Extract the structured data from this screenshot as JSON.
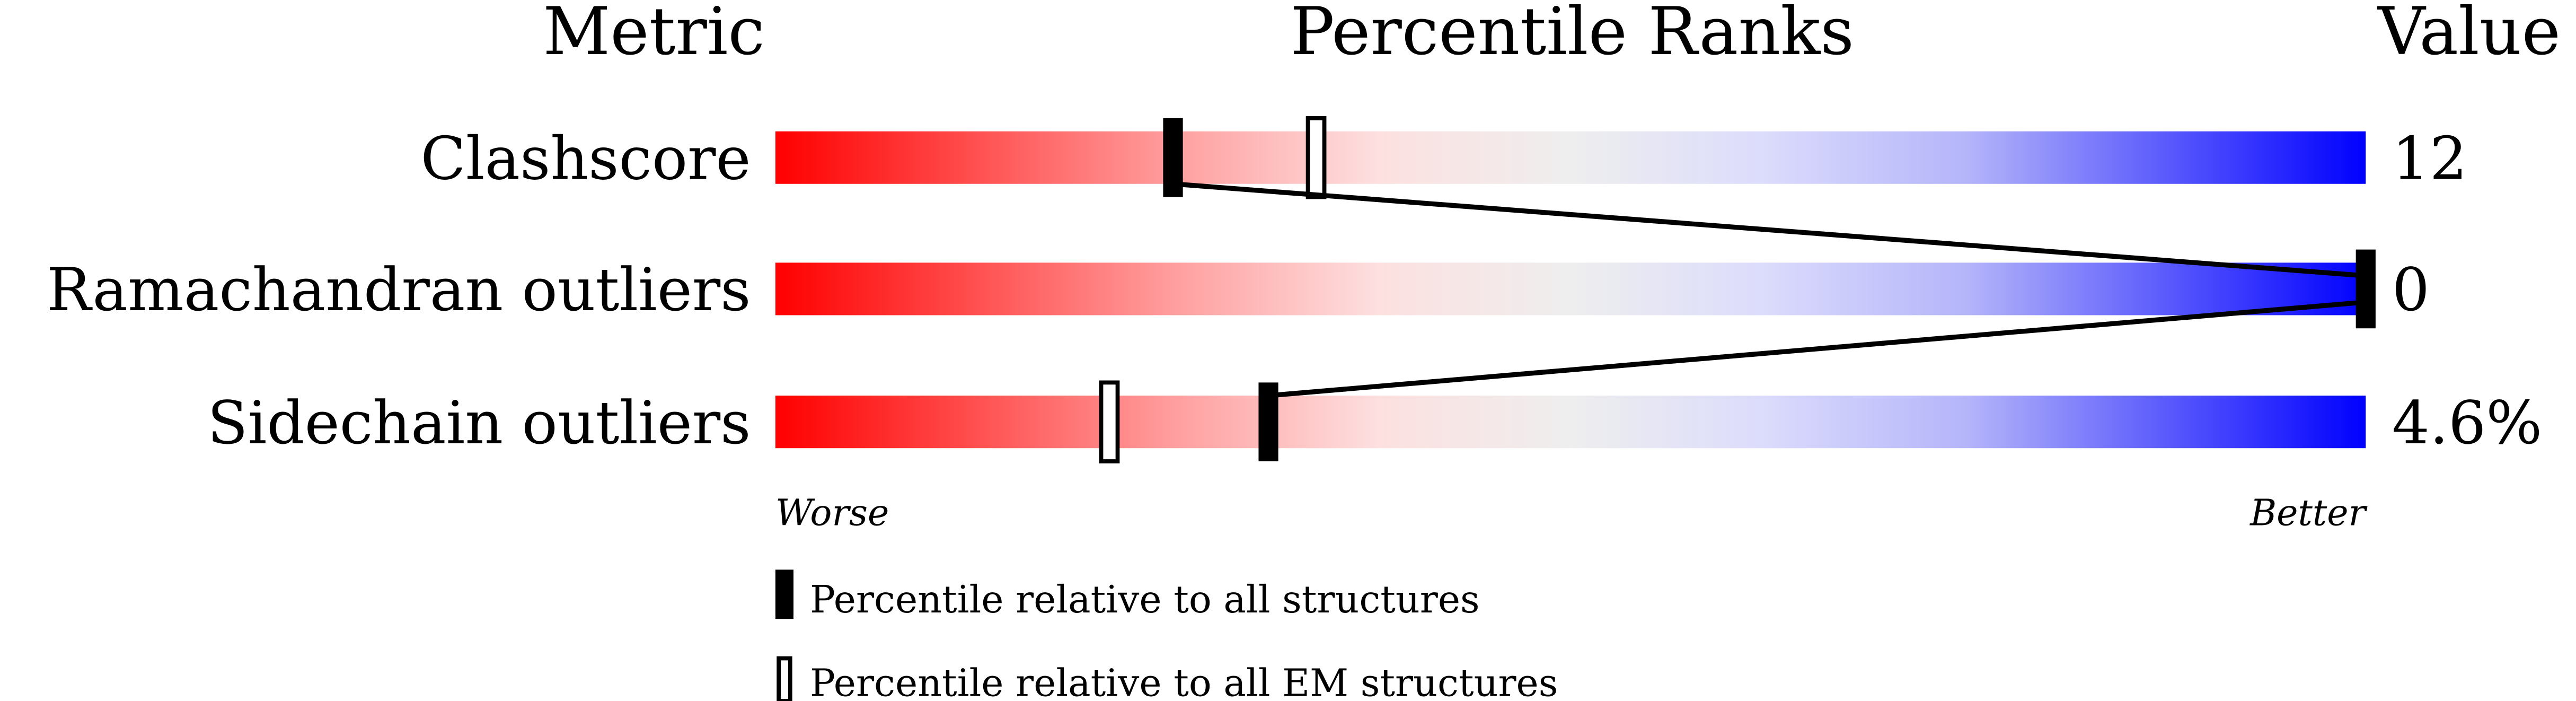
{
  "chart_data": {
    "type": "table",
    "headers": {
      "metric": "Metric",
      "ranks": "Percentile Ranks",
      "value": "Value"
    },
    "xlim": [
      0,
      100
    ],
    "rows": [
      {
        "metric": "Clashscore",
        "value": "12",
        "percentile_all": 25,
        "percentile_em": 34
      },
      {
        "metric": "Ramachandran outliers",
        "value": "0",
        "percentile_all": 100,
        "percentile_em": null
      },
      {
        "metric": "Sidechain outliers",
        "value": "4.6%",
        "percentile_all": 31,
        "percentile_em": 21
      }
    ],
    "axis_labels": {
      "left": "Worse",
      "right": "Better"
    },
    "legend": [
      {
        "marker": "filled",
        "label": "Percentile relative to all structures"
      },
      {
        "marker": "hollow",
        "label": "Percentile relative to all EM structures"
      }
    ],
    "colors": {
      "worse": "#ff0000",
      "middle": "#eeeeee",
      "better": "#0000ff",
      "marker": "#000000"
    }
  }
}
